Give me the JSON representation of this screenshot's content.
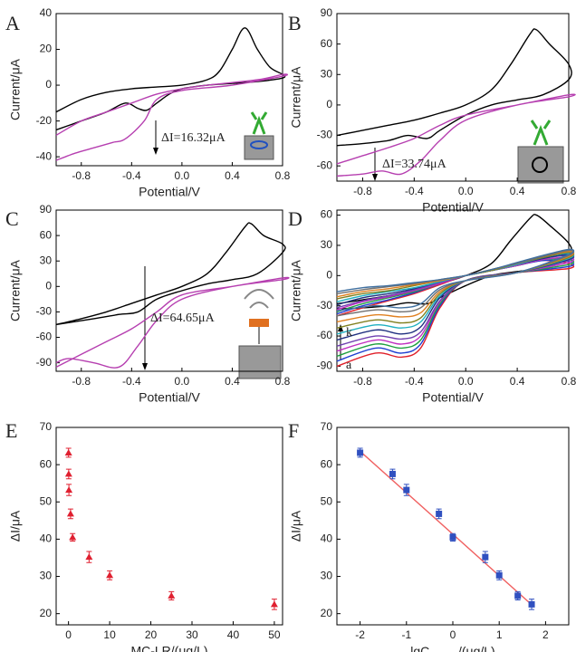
{
  "chart_data": [
    {
      "type": "line",
      "label": "A",
      "xlabel": "Potential/V",
      "ylabel": "Current/μA",
      "xlim": [
        -1,
        0.8
      ],
      "ylim": [
        -45,
        40
      ],
      "xticks": [
        -0.8,
        -0.4,
        {
          "value": 0,
          "label": "0.0"
        },
        0.4,
        0.8
      ],
      "yticks": [
        -40,
        -20,
        0,
        20,
        40
      ],
      "annotation": "ΔI=16.32μA",
      "series": [
        {
          "color": "#000000",
          "x": [
            -1,
            -0.8,
            -0.6,
            -0.4,
            -0.2,
            0,
            0.2,
            0.3,
            0.4,
            0.5,
            0.6,
            0.7,
            0.8,
            0.8,
            0.6,
            0.4,
            0.2,
            0,
            -0.1,
            -0.2,
            -0.28,
            -0.35,
            -0.45,
            -0.6,
            -0.8,
            -1
          ],
          "values": [
            -15,
            -8,
            -4,
            -2,
            -1,
            0,
            3,
            8,
            20,
            32,
            20,
            10,
            6,
            4,
            2,
            1,
            0,
            -2,
            -5,
            -10,
            -14,
            -13,
            -10,
            -15,
            -20,
            -25
          ]
        },
        {
          "color": "#b63fb0",
          "x": [
            -1,
            -0.8,
            -0.6,
            -0.4,
            -0.2,
            0,
            0.2,
            0.6,
            0.8,
            0.8,
            0.4,
            0,
            -0.2,
            -0.3,
            -0.45,
            -0.55,
            -0.7,
            -0.85,
            -1
          ],
          "values": [
            -28,
            -20,
            -15,
            -10,
            -5,
            -2,
            0,
            3,
            6,
            5,
            0,
            -3,
            -8,
            -20,
            -30,
            -32,
            -35,
            -38,
            -42
          ]
        }
      ]
    },
    {
      "type": "line",
      "label": "B",
      "xlabel": "Potential/V",
      "ylabel": "Current/μA",
      "xlim": [
        -1,
        0.8
      ],
      "ylim": [
        -75,
        90
      ],
      "xticks": [
        -0.8,
        -0.4,
        {
          "value": 0,
          "label": "0.0"
        },
        0.4,
        0.8
      ],
      "yticks": [
        -60,
        -30,
        0,
        30,
        60,
        90
      ],
      "annotation": "ΔI=33.74μA",
      "series": [
        {
          "color": "#000000",
          "x": [
            -1,
            -0.8,
            -0.6,
            -0.4,
            -0.2,
            0,
            0.2,
            0.35,
            0.5,
            0.55,
            0.65,
            0.8,
            0.8,
            0.6,
            0.4,
            0.2,
            0,
            -0.2,
            -0.3,
            -0.45,
            -0.6,
            -0.8,
            -1
          ],
          "values": [
            -30,
            -25,
            -20,
            -15,
            -8,
            0,
            15,
            40,
            70,
            74,
            60,
            40,
            25,
            10,
            5,
            0,
            -10,
            -25,
            -33,
            -30,
            -35,
            -38,
            -40
          ]
        },
        {
          "color": "#b63fb0",
          "x": [
            -1,
            -0.8,
            -0.6,
            -0.4,
            -0.2,
            0,
            0.4,
            0.8,
            0.8,
            0.4,
            0,
            -0.2,
            -0.35,
            -0.5,
            -0.65,
            -0.8,
            -1
          ],
          "values": [
            -58,
            -50,
            -42,
            -33,
            -20,
            -10,
            0,
            10,
            8,
            0,
            -15,
            -35,
            -55,
            -68,
            -65,
            -68,
            -70
          ]
        }
      ]
    },
    {
      "type": "line",
      "label": "C",
      "xlabel": "Potential/V",
      "ylabel": "Current/μA",
      "xlim": [
        -1,
        0.8
      ],
      "ylim": [
        -100,
        90
      ],
      "xticks": [
        -0.8,
        -0.4,
        {
          "value": 0,
          "label": "0.0"
        },
        0.4,
        0.8
      ],
      "yticks": [
        -90,
        -60,
        -30,
        0,
        30,
        60,
        90
      ],
      "annotation": "ΔI=64.65μA",
      "series": [
        {
          "color": "#000000",
          "x": [
            -1,
            -0.8,
            -0.6,
            -0.4,
            -0.2,
            0,
            0.2,
            0.35,
            0.5,
            0.55,
            0.65,
            0.8,
            0.8,
            0.6,
            0.4,
            0.2,
            0,
            -0.2,
            -0.35,
            -0.5,
            -0.7,
            -1
          ],
          "values": [
            -45,
            -38,
            -30,
            -20,
            -10,
            0,
            15,
            40,
            70,
            74,
            60,
            50,
            40,
            15,
            8,
            3,
            -5,
            -15,
            -30,
            -33,
            -38,
            -45
          ]
        },
        {
          "color": "#b63fb0",
          "x": [
            -1,
            -0.8,
            -0.6,
            -0.4,
            -0.2,
            0,
            0.4,
            0.8,
            0.8,
            0.4,
            0,
            -0.2,
            -0.35,
            -0.5,
            -0.7,
            -0.9,
            -1
          ],
          "values": [
            -95,
            -80,
            -65,
            -50,
            -30,
            -10,
            0,
            10,
            8,
            0,
            -15,
            -40,
            -70,
            -95,
            -90,
            -85,
            -90
          ]
        }
      ]
    },
    {
      "type": "line",
      "label": "D",
      "xlabel": "Potential/V",
      "ylabel": "Current/μA",
      "xlim": [
        -1,
        0.8
      ],
      "ylim": [
        -95,
        65
      ],
      "xticks": [
        -0.8,
        -0.4,
        {
          "value": 0,
          "label": "0.0"
        },
        0.4,
        0.8
      ],
      "yticks": [
        -90,
        -60,
        -30,
        0,
        30,
        60
      ],
      "annotations": [
        "k",
        "a"
      ],
      "series": [
        {
          "color": "#000000",
          "x": [
            -1,
            -0.8,
            -0.6,
            -0.4,
            -0.2,
            0,
            0.2,
            0.35,
            0.5,
            0.55,
            0.65,
            0.8,
            0.8,
            0.6,
            0.4,
            0.2,
            0,
            -0.2,
            -0.3,
            -0.45,
            -0.6,
            -0.8,
            -1
          ],
          "values": [
            -28,
            -24,
            -20,
            -15,
            -8,
            0,
            12,
            35,
            57,
            60,
            50,
            32,
            22,
            8,
            4,
            0,
            -10,
            -22,
            -28,
            -27,
            -30,
            -32,
            -33
          ]
        },
        {
          "color": "#e0202a",
          "x": [
            -1,
            -0.8,
            -0.6,
            -0.4,
            -0.2,
            0,
            0.2,
            0.4,
            0.6,
            0.8,
            0.8,
            0.4,
            0,
            -0.2,
            -0.35,
            -0.5,
            -0.7,
            -1
          ],
          "values": [
            -40,
            -32,
            -25,
            -18,
            -9,
            0,
            5,
            10,
            15,
            12,
            7,
            3,
            -5,
            -32,
            -72,
            -81,
            -77,
            -90
          ]
        },
        {
          "color": "#2040d0",
          "x": [
            -1,
            -0.8,
            -0.6,
            -0.4,
            -0.2,
            0,
            0.2,
            0.4,
            0.6,
            0.8,
            0.8,
            0.4,
            0,
            -0.2,
            -0.35,
            -0.5,
            -0.7,
            -1
          ],
          "values": [
            -38,
            -30,
            -24,
            -17,
            -8,
            0,
            5,
            10,
            15,
            14,
            9,
            3,
            -5,
            -30,
            -68,
            -77,
            -72,
            -85
          ]
        },
        {
          "color": "#20a040",
          "x": [
            -1,
            -0.8,
            -0.6,
            -0.4,
            -0.2,
            0,
            0.2,
            0.4,
            0.6,
            0.8,
            0.8,
            0.4,
            0,
            -0.2,
            -0.35,
            -0.5,
            -0.7,
            -1
          ],
          "values": [
            -36,
            -28,
            -22,
            -16,
            -8,
            0,
            5,
            10,
            16,
            16,
            11,
            3,
            -5,
            -28,
            -64,
            -72,
            -68,
            -80
          ]
        },
        {
          "color": "#c030c0",
          "x": [
            -1,
            -0.8,
            -0.6,
            -0.4,
            -0.2,
            0,
            0.2,
            0.4,
            0.6,
            0.8,
            0.8,
            0.4,
            0,
            -0.2,
            -0.35,
            -0.5,
            -0.7,
            -1
          ],
          "values": [
            -34,
            -26,
            -21,
            -15,
            -8,
            0,
            5,
            10,
            16,
            18,
            13,
            3,
            -5,
            -26,
            -60,
            -68,
            -64,
            -75
          ]
        },
        {
          "color": "#7040b0",
          "x": [
            -1,
            -0.8,
            -0.6,
            -0.4,
            -0.2,
            0,
            0.2,
            0.4,
            0.6,
            0.8,
            0.8,
            0.4,
            0,
            -0.2,
            -0.35,
            -0.5,
            -0.7,
            -1
          ],
          "values": [
            -32,
            -25,
            -20,
            -14,
            -7,
            0,
            5,
            11,
            17,
            20,
            15,
            3,
            -5,
            -25,
            -56,
            -63,
            -60,
            -70
          ]
        },
        {
          "color": "#203080",
          "x": [
            -1,
            -0.8,
            -0.6,
            -0.4,
            -0.2,
            0,
            0.2,
            0.4,
            0.6,
            0.8,
            0.8,
            0.4,
            0,
            -0.2,
            -0.35,
            -0.5,
            -0.7,
            -1
          ],
          "values": [
            -29,
            -22,
            -18,
            -13,
            -6,
            0,
            5,
            11,
            17,
            21,
            16,
            3,
            -5,
            -22,
            -51,
            -58,
            -54,
            -64
          ]
        },
        {
          "color": "#20b0c0",
          "x": [
            -1,
            -0.8,
            -0.6,
            -0.4,
            -0.2,
            0,
            0.2,
            0.4,
            0.6,
            0.8,
            0.8,
            0.4,
            0,
            -0.2,
            -0.35,
            -0.5,
            -0.7,
            -1
          ],
          "values": [
            -26,
            -20,
            -16,
            -12,
            -6,
            0,
            5,
            11,
            18,
            22,
            17,
            3,
            -5,
            -20,
            -46,
            -52,
            -49,
            -58
          ]
        },
        {
          "color": "#808020",
          "x": [
            -1,
            -0.8,
            -0.6,
            -0.4,
            -0.2,
            0,
            0.2,
            0.4,
            0.6,
            0.8,
            0.8,
            0.4,
            0,
            -0.2,
            -0.35,
            -0.5,
            -0.7,
            -1
          ],
          "values": [
            -23,
            -18,
            -15,
            -10,
            -5,
            0,
            5,
            12,
            18,
            23,
            18,
            3,
            -5,
            -18,
            -42,
            -47,
            -44,
            -52
          ]
        },
        {
          "color": "#e08020",
          "x": [
            -1,
            -0.8,
            -0.6,
            -0.4,
            -0.2,
            0,
            0.2,
            0.4,
            0.6,
            0.8,
            0.8,
            0.4,
            0,
            -0.2,
            -0.35,
            -0.5,
            -0.7,
            -1
          ],
          "values": [
            -21,
            -16,
            -13,
            -9,
            -5,
            0,
            6,
            12,
            19,
            24,
            19,
            3,
            -5,
            -16,
            -37,
            -41,
            -39,
            -46
          ]
        },
        {
          "color": "#707070",
          "x": [
            -1,
            -0.8,
            -0.6,
            -0.4,
            -0.2,
            0,
            0.2,
            0.4,
            0.6,
            0.8,
            0.8,
            0.4,
            0,
            -0.2,
            -0.35,
            -0.5,
            -0.7,
            -1
          ],
          "values": [
            -18,
            -14,
            -11,
            -8,
            -4,
            0,
            6,
            12,
            19,
            25,
            20,
            3,
            -5,
            -14,
            -32,
            -36,
            -34,
            -40
          ]
        },
        {
          "color": "#4070a0",
          "x": [
            -1,
            -0.8,
            -0.6,
            -0.4,
            -0.2,
            0,
            0.2,
            0.4,
            0.6,
            0.8,
            0.8,
            0.4,
            0,
            -0.2,
            -0.35,
            -0.5,
            -0.7,
            -1
          ],
          "values": [
            -16,
            -12,
            -10,
            -7,
            -4,
            0,
            6,
            13,
            20,
            26,
            21,
            3,
            -5,
            -12,
            -28,
            -32,
            -30,
            -35
          ]
        }
      ]
    },
    {
      "type": "scatter",
      "label": "E",
      "xlabel": "MC-LR/(μg/L)",
      "ylabel": "ΔI/μA",
      "xlim": [
        -3,
        52
      ],
      "ylim": [
        17,
        70
      ],
      "xticks": [
        0,
        10,
        20,
        30,
        40,
        50
      ],
      "yticks": [
        20,
        30,
        40,
        50,
        60,
        70
      ],
      "series": [
        {
          "color": "#e02030",
          "marker": "triangle",
          "x": [
            0.01,
            0.05,
            0.1,
            0.5,
            1,
            5,
            10,
            25,
            50
          ],
          "values": [
            63.2,
            57.5,
            53.2,
            46.8,
            40.5,
            35.2,
            30.3,
            24.8,
            22.5
          ],
          "errors": [
            1.2,
            1.3,
            1.5,
            1.3,
            1.0,
            1.5,
            1.2,
            1.1,
            1.4
          ]
        }
      ]
    },
    {
      "type": "scatter",
      "label": "F",
      "xlabel": "lgC",
      "xlabel_sub": "MC-LR",
      "xlabel_unit": "/(μg/L)",
      "ylabel": "ΔI/μA",
      "xlim": [
        -2.5,
        2.5
      ],
      "ylim": [
        17,
        70
      ],
      "xticks": [
        -2,
        -1,
        0,
        1,
        2
      ],
      "yticks": [
        20,
        30,
        40,
        50,
        60,
        70
      ],
      "fit": {
        "color": "#f06060",
        "x": [
          -2,
          1.7
        ],
        "values": [
          63.6,
          22.4
        ]
      },
      "series": [
        {
          "color": "#3050c0",
          "marker": "square",
          "x": [
            -2,
            -1.3,
            -1,
            -0.3,
            0,
            0.7,
            1,
            1.4,
            1.7
          ],
          "values": [
            63.2,
            57.5,
            53.2,
            46.8,
            40.5,
            35.2,
            30.3,
            24.8,
            22.5
          ],
          "errors": [
            1.2,
            1.3,
            1.5,
            1.3,
            1.0,
            1.5,
            1.2,
            1.1,
            1.4
          ]
        }
      ]
    }
  ]
}
